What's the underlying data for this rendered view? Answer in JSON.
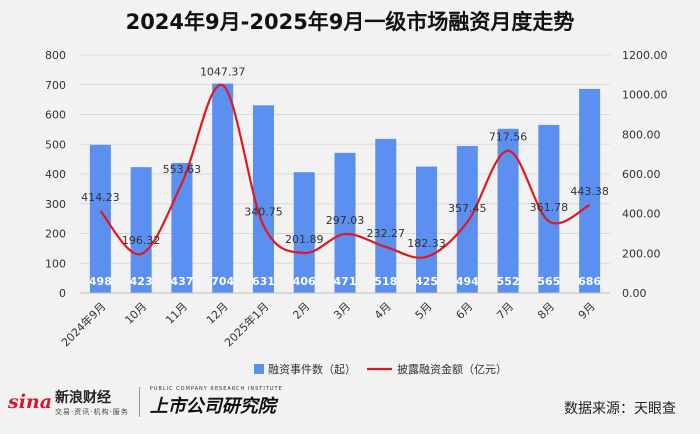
{
  "title": "2024年9月-2025年9月一级市场融资月度走势",
  "chart_data": {
    "type": "bar+line",
    "categories": [
      "2024年9月",
      "10月",
      "11月",
      "12月",
      "2025年1月",
      "2月",
      "3月",
      "4月",
      "5月",
      "6月",
      "7月",
      "8月",
      "9月"
    ],
    "series": [
      {
        "name": "融资事件数（起）",
        "type": "bar",
        "axis": "left",
        "color": "#5b8ff0",
        "values": [
          498,
          423,
          437,
          704,
          631,
          406,
          471,
          518,
          425,
          494,
          552,
          565,
          686
        ]
      },
      {
        "name": "披露融资金额（亿元）",
        "type": "line",
        "axis": "right",
        "color": "#e0191f",
        "values": [
          414.23,
          196.32,
          553.63,
          1047.37,
          340.75,
          201.89,
          297.03,
          232.27,
          182.33,
          357.45,
          717.56,
          361.78,
          443.38
        ],
        "labels": [
          "414.23",
          "196.32",
          "553.63",
          "1047.37",
          "340.75",
          "201.89",
          "297.03",
          "232.27",
          "182.33",
          "357.45",
          "717.56",
          "361.78",
          "443.38"
        ]
      }
    ],
    "y_left": {
      "ylim": [
        0,
        800
      ],
      "ticks": [
        "0",
        "100",
        "200",
        "300",
        "400",
        "500",
        "600",
        "700",
        "800"
      ]
    },
    "y_right": {
      "ylim": [
        0,
        1200
      ],
      "ticks": [
        "0.00",
        "200.00",
        "400.00",
        "600.00",
        "800.00",
        "1000.00",
        "1200.00"
      ]
    },
    "grid": true,
    "legend_position": "bottom"
  },
  "footer": {
    "sina_word": "sina",
    "sina_cn": "新浪财经",
    "sina_tag": "交易·资讯·机构·服务",
    "inst_cn": "上市公司研究院",
    "inst_en": "PUBLIC COMPANY RESEARCH INSTITUTE",
    "source": "数据来源：天眼查"
  }
}
